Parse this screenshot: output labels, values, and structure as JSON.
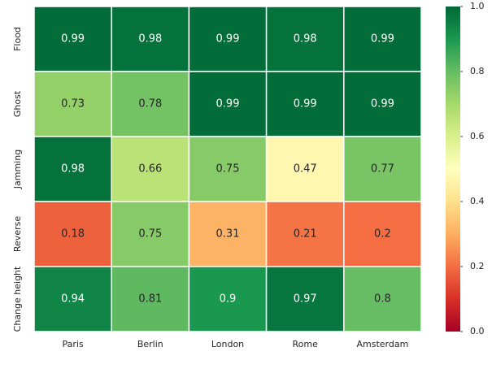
{
  "chart_data": {
    "type": "heatmap",
    "categories": [
      "Paris",
      "Berlin",
      "London",
      "Rome",
      "Amsterdam"
    ],
    "rows": [
      "Flood",
      "Ghost",
      "Jamming",
      "Reverse",
      "Change height"
    ],
    "values": [
      [
        0.99,
        0.98,
        0.99,
        0.98,
        0.99
      ],
      [
        0.73,
        0.78,
        0.99,
        0.99,
        0.99
      ],
      [
        0.98,
        0.66,
        0.75,
        0.47,
        0.77
      ],
      [
        0.18,
        0.75,
        0.31,
        0.21,
        0.2
      ],
      [
        0.94,
        0.81,
        0.9,
        0.97,
        0.8
      ]
    ],
    "colormap": "RdYlGn",
    "zlim": [
      0,
      1
    ],
    "zticks": [
      {
        "value": 0,
        "label": "0.0"
      },
      0.2,
      0.4,
      0.6,
      0.8,
      {
        "value": 1,
        "label": "1.0"
      }
    ]
  }
}
